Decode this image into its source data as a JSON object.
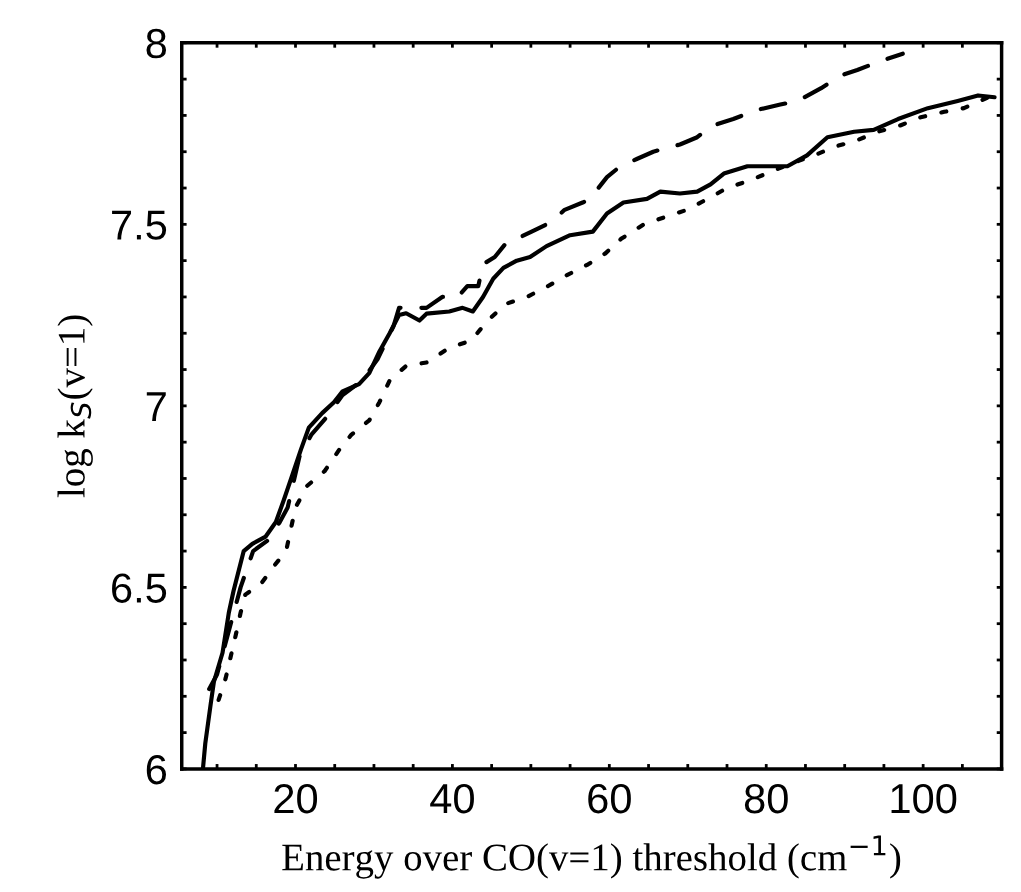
{
  "chart_data": {
    "type": "line",
    "xlabel": "Energy over CO(v=1) threshold (cm$^{−1}$)",
    "ylabel": "log k$_{S}$(v=1)",
    "xlim": [
      5.5,
      110
    ],
    "ylim": [
      6,
      8
    ],
    "xticks": [
      {
        "value": 10,
        "label": null
      },
      {
        "value": 15,
        "label": null
      },
      20,
      {
        "value": 25,
        "label": null
      },
      {
        "value": 30,
        "label": null
      },
      {
        "value": 35,
        "label": null
      },
      40,
      {
        "value": 45,
        "label": null
      },
      {
        "value": 50,
        "label": null
      },
      {
        "value": 55,
        "label": null
      },
      60,
      {
        "value": 65,
        "label": null
      },
      {
        "value": 70,
        "label": null
      },
      {
        "value": 75,
        "label": null
      },
      80,
      {
        "value": 85,
        "label": null
      },
      {
        "value": 90,
        "label": null
      },
      {
        "value": 95,
        "label": null
      },
      100,
      {
        "value": 105,
        "label": null
      }
    ],
    "yticks": [
      6,
      {
        "value": 6.1,
        "label": null
      },
      {
        "value": 6.2,
        "label": null
      },
      {
        "value": 6.3,
        "label": null
      },
      {
        "value": 6.4,
        "label": null
      },
      6.5,
      {
        "value": 6.6,
        "label": null
      },
      {
        "value": 6.7,
        "label": null
      },
      {
        "value": 6.8,
        "label": null
      },
      {
        "value": 6.9,
        "label": null
      },
      7,
      {
        "value": 7.1,
        "label": null
      },
      {
        "value": 7.2,
        "label": null
      },
      {
        "value": 7.3,
        "label": null
      },
      {
        "value": 7.4,
        "label": null
      },
      7.5,
      {
        "value": 7.6,
        "label": null
      },
      {
        "value": 7.7,
        "label": null
      },
      {
        "value": 7.8,
        "label": null
      },
      {
        "value": 7.9,
        "label": null
      },
      8
    ],
    "series": [
      {
        "color": "#000000",
        "line_style": "solid",
        "x": [
          8.2,
          8.5,
          9.2,
          9.6,
          10.7,
          11.5,
          12.1,
          13.4,
          14.5,
          16.2,
          17.5,
          18.5,
          19.6,
          20.7,
          21.7,
          23.4,
          24.9,
          26.0,
          28.1,
          29.4,
          30.7,
          32.0,
          33.2,
          34.1,
          35.8,
          36.7,
          39.6,
          41.3,
          42.6,
          43.9,
          45.2,
          46.5,
          48.2,
          49.9,
          52.0,
          55.0,
          57.9,
          59.7,
          61.8,
          64.8,
          66.5,
          69.0,
          71.2,
          72.9,
          74.6,
          77.6,
          80.6,
          82.7,
          85.2,
          87.8,
          91.2,
          93.7,
          96.8,
          100.6,
          104.4,
          107.0,
          109.1
        ],
        "values": [
          6.0,
          6.07,
          6.18,
          6.24,
          6.32,
          6.43,
          6.49,
          6.6,
          6.62,
          6.64,
          6.68,
          6.74,
          6.81,
          6.88,
          6.94,
          6.98,
          7.01,
          7.04,
          7.06,
          7.09,
          7.15,
          7.2,
          7.25,
          7.255,
          7.235,
          7.254,
          7.26,
          7.27,
          7.26,
          7.3,
          7.35,
          7.38,
          7.4,
          7.41,
          7.44,
          7.47,
          7.48,
          7.53,
          7.56,
          7.57,
          7.59,
          7.585,
          7.59,
          7.61,
          7.64,
          7.66,
          7.66,
          7.66,
          7.69,
          7.74,
          7.755,
          7.76,
          7.79,
          7.82,
          7.84,
          7.855,
          7.85
        ]
      },
      {
        "color": "#000000",
        "line_style": "dashed",
        "x": [
          9.0,
          10.0,
          11.5,
          13.0,
          14.6,
          16.5,
          18.0,
          19.0,
          20.5,
          22.0,
          24.0,
          26.0,
          28.5,
          30.5,
          32.5,
          33.2,
          36.7,
          38.7,
          40.7,
          41.9,
          43.3,
          43.9,
          45.4,
          46.9,
          48.2,
          50.1,
          52.0,
          53.3,
          54.3,
          56.6,
          57.5,
          59.7,
          61.4,
          63.5,
          65.6,
          69.0,
          71.2,
          72.9,
          75.8,
          78.8,
          81.8,
          84.0,
          87.0,
          89.5,
          91.6,
          94.6,
          97.4
        ],
        "values": [
          6.22,
          6.26,
          6.38,
          6.5,
          6.6,
          6.63,
          6.68,
          6.72,
          6.86,
          6.92,
          6.97,
          7.03,
          7.07,
          7.13,
          7.22,
          7.27,
          7.27,
          7.3,
          7.3,
          7.33,
          7.33,
          7.39,
          7.41,
          7.45,
          7.46,
          7.48,
          7.5,
          7.52,
          7.54,
          7.56,
          7.57,
          7.63,
          7.66,
          7.68,
          7.7,
          7.72,
          7.74,
          7.77,
          7.79,
          7.815,
          7.83,
          7.84,
          7.875,
          7.91,
          7.925,
          7.95,
          7.97
        ]
      },
      {
        "color": "#000000",
        "line_style": "dotted",
        "x": [
          10.2,
          11.1,
          12.4,
          13.0,
          13.6,
          15.6,
          17.3,
          18.8,
          19.4,
          20.0,
          21.5,
          23.7,
          25.6,
          27.1,
          29.4,
          30.7,
          32.0,
          34.1,
          36.8,
          39.6,
          42.4,
          44.3,
          46.7,
          49.5,
          52.2,
          54.6,
          57.3,
          59.5,
          61.5,
          64.4,
          67.1,
          69.9,
          72.5,
          75.0,
          77.8,
          80.6,
          83.5,
          86.1,
          88.9,
          91.4,
          94.2,
          96.8,
          99.7,
          102.7,
          105.2,
          108.3
        ],
        "values": [
          6.19,
          6.25,
          6.37,
          6.43,
          6.48,
          6.51,
          6.56,
          6.6,
          6.66,
          6.72,
          6.78,
          6.82,
          6.88,
          6.92,
          6.96,
          7.01,
          7.07,
          7.11,
          7.12,
          7.16,
          7.18,
          7.23,
          7.28,
          7.3,
          7.33,
          7.36,
          7.39,
          7.42,
          7.46,
          7.5,
          7.52,
          7.54,
          7.57,
          7.6,
          7.62,
          7.645,
          7.67,
          7.69,
          7.715,
          7.73,
          7.755,
          7.77,
          7.795,
          7.81,
          7.82,
          7.85
        ]
      }
    ]
  }
}
